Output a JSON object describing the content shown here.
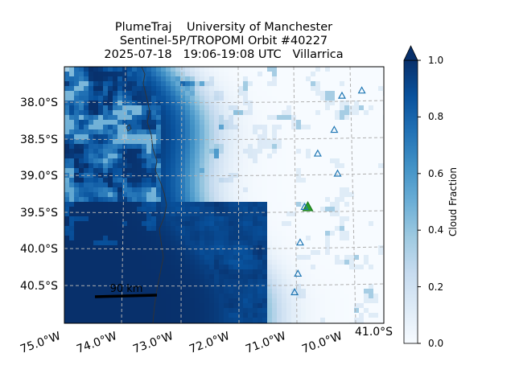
{
  "title": {
    "line1": "PlumeTraj    University of Manchester",
    "line2": "Sentinel-5P/TROPOMI Orbit #40227",
    "line3": "2025-07-18   19:06-19:08 UTC   Villarrica"
  },
  "chart_data": {
    "type": "heatmap",
    "variable": "Cloud Fraction",
    "colormap": "Blues",
    "clim": [
      0.0,
      1.0
    ],
    "colorbar_extend": "max",
    "lon_extent": [
      -74.15,
      -71.25
    ],
    "lat_extent": [
      -40.99,
      -37.53
    ],
    "lat_ticks": [
      {
        "value": -38.0,
        "label": "38.0°S"
      },
      {
        "value": -38.5,
        "label": "38.5°S"
      },
      {
        "value": -39.0,
        "label": "39.0°S"
      },
      {
        "value": -39.5,
        "label": "39.5°S"
      },
      {
        "value": -40.0,
        "label": "40.0°S"
      },
      {
        "value": -40.5,
        "label": "40.5°S"
      }
    ],
    "lon_ticks": [
      {
        "value": -75.0,
        "label": "75.0°W"
      },
      {
        "value": -74.0,
        "label": "74.0°W"
      },
      {
        "value": -73.0,
        "label": "73.0°W"
      },
      {
        "value": -72.0,
        "label": "72.0°W"
      },
      {
        "value": -71.0,
        "label": "71.0°W"
      },
      {
        "value": -70.0,
        "label": "70.0°W"
      }
    ],
    "corner_label": "41.0°S",
    "colorbar_ticks": [
      "0.0",
      "0.2",
      "0.4",
      "0.6",
      "0.8",
      "1.0"
    ],
    "scale_bar_label": "90 km",
    "volcano_markers": [
      {
        "lon": -71.94,
        "lat": -39.42,
        "color": "#2ca02c",
        "highlight": true
      },
      {
        "lon": -71.63,
        "lat": -37.92
      },
      {
        "lon": -71.45,
        "lat": -37.85
      },
      {
        "lon": -71.7,
        "lat": -38.38
      },
      {
        "lon": -71.85,
        "lat": -38.7
      },
      {
        "lon": -71.67,
        "lat": -38.97
      },
      {
        "lon": -71.97,
        "lat": -39.42
      },
      {
        "lon": -72.01,
        "lat": -39.9
      },
      {
        "lon": -72.03,
        "lat": -40.32
      },
      {
        "lon": -72.06,
        "lat": -40.57
      },
      {
        "lon": -72.18,
        "lat": -41.1
      }
    ]
  }
}
